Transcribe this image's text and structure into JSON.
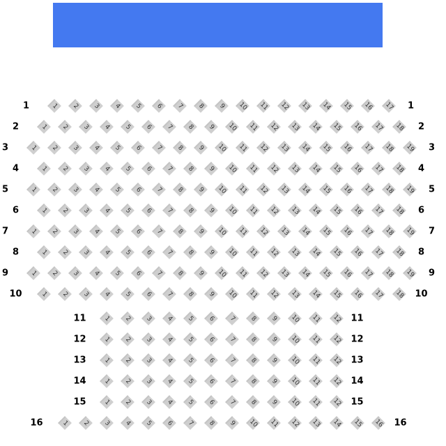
{
  "stage": {
    "color": "#4479f0"
  },
  "seat_color": "#cfcfcf",
  "rows": [
    {
      "label": "1",
      "seats": 17
    },
    {
      "label": "2",
      "seats": 18
    },
    {
      "label": "3",
      "seats": 19
    },
    {
      "label": "4",
      "seats": 18
    },
    {
      "label": "5",
      "seats": 19
    },
    {
      "label": "6",
      "seats": 18
    },
    {
      "label": "7",
      "seats": 19
    },
    {
      "label": "8",
      "seats": 18
    },
    {
      "label": "9",
      "seats": 19
    },
    {
      "label": "10",
      "seats": 18
    },
    {
      "label": "11",
      "seats": 12
    },
    {
      "label": "12",
      "seats": 12
    },
    {
      "label": "13",
      "seats": 12
    },
    {
      "label": "14",
      "seats": 12
    },
    {
      "label": "15",
      "seats": 12
    },
    {
      "label": "16",
      "seats": 16
    }
  ]
}
